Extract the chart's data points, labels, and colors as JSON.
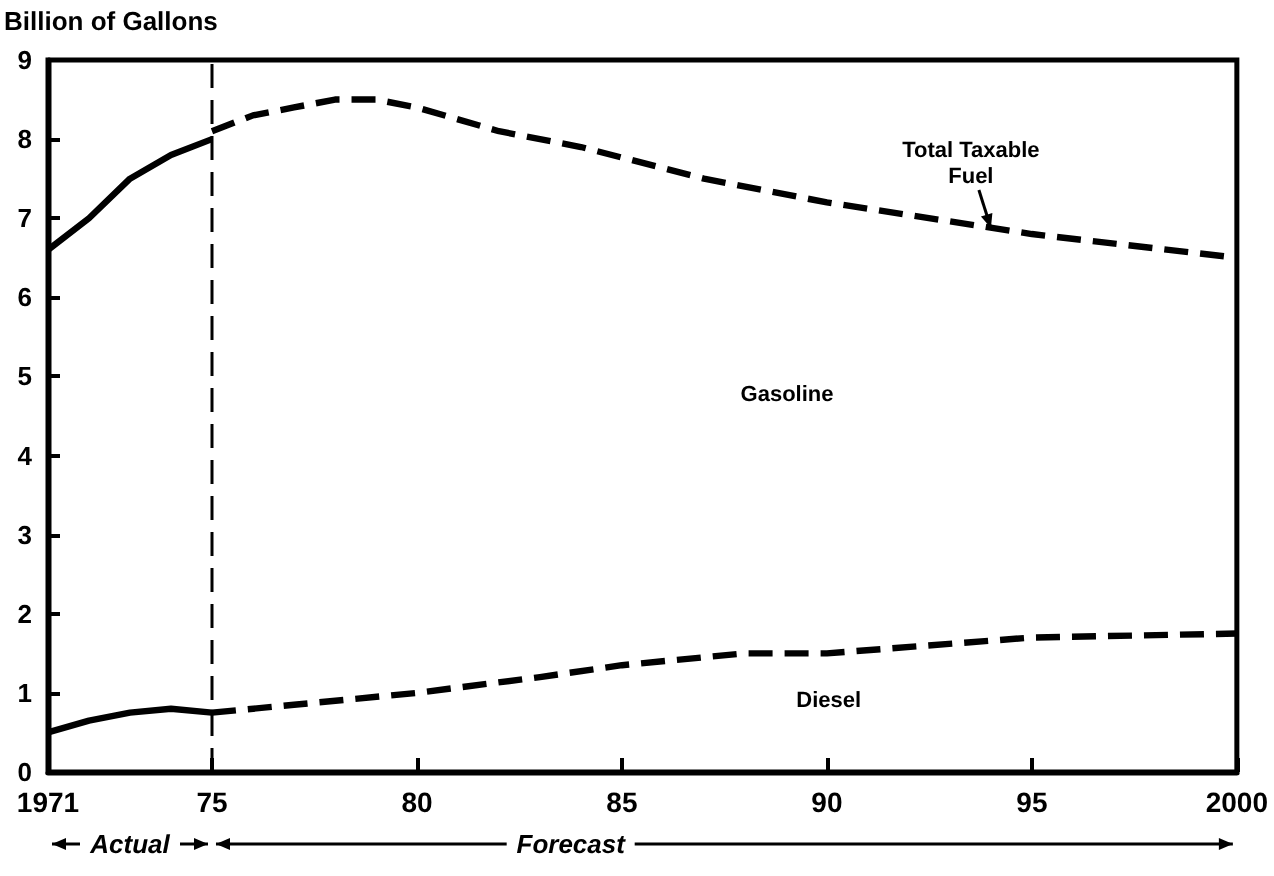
{
  "chart_data": {
    "type": "line",
    "ylabel": "Billion of Gallons",
    "xlim": [
      1971,
      2000
    ],
    "xticks": [
      {
        "value": 1971,
        "label": "1971"
      },
      {
        "value": 1975,
        "label": "75"
      },
      {
        "value": 1980,
        "label": "80"
      },
      {
        "value": 1985,
        "label": "85"
      },
      {
        "value": 1990,
        "label": "90"
      },
      {
        "value": 1995,
        "label": "95"
      },
      {
        "value": 2000,
        "label": "2000"
      }
    ],
    "ylim": [
      0,
      9
    ],
    "yticks": [
      0,
      1,
      2,
      3,
      4,
      5,
      6,
      7,
      8,
      9
    ],
    "grid": false,
    "marker": "none",
    "series": [
      {
        "color": "#000000",
        "line_style": "solid",
        "x": [
          1971,
          1972,
          1973,
          1974,
          1975
        ],
        "values": [
          6.6,
          7.0,
          7.5,
          7.8,
          8.0
        ]
      },
      {
        "color": "#000000",
        "line_style": "dashed",
        "x": [
          1975,
          1976,
          1977,
          1978,
          1979,
          1980,
          1982,
          1984,
          1987,
          1990,
          1995,
          2000
        ],
        "values": [
          8.1,
          8.3,
          8.4,
          8.5,
          8.5,
          8.4,
          8.1,
          7.9,
          7.5,
          7.2,
          6.8,
          6.5
        ]
      },
      {
        "color": "#000000",
        "line_style": "solid",
        "x": [
          1971,
          1972,
          1973,
          1974,
          1975
        ],
        "values": [
          0.5,
          0.65,
          0.75,
          0.8,
          0.75
        ]
      },
      {
        "color": "#000000",
        "line_style": "dashed",
        "x": [
          1975,
          1977,
          1980,
          1983,
          1985,
          1988,
          1990,
          1995,
          2000
        ],
        "values": [
          0.75,
          0.85,
          1.0,
          1.2,
          1.35,
          1.5,
          1.5,
          1.7,
          1.75
        ]
      }
    ],
    "ref_lines": [
      {
        "axis": "x",
        "value": 1975,
        "color": "#000000",
        "line_style": "dashed"
      }
    ],
    "annotations": [
      {
        "text": "Total Taxable Fuel",
        "x": 1994,
        "y": 6.8
      },
      "Gasoline",
      "Diesel",
      "Actual",
      "Forecast"
    ]
  }
}
